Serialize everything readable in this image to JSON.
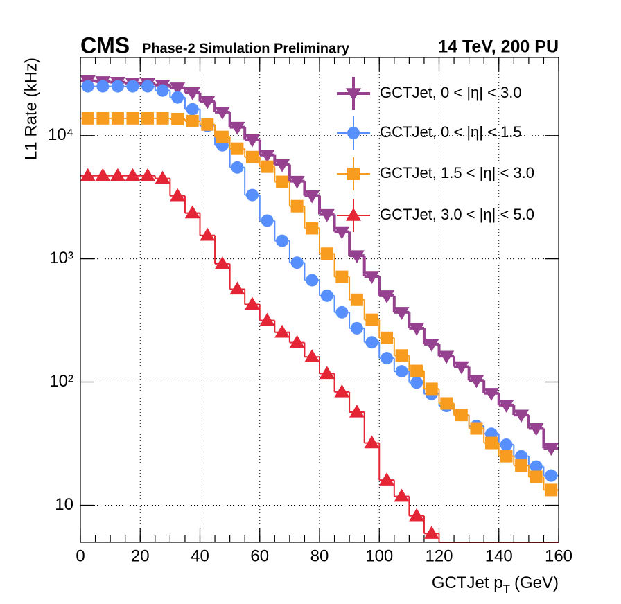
{
  "chart_data": {
    "type": "histogram",
    "experiment": "CMS",
    "subtitle": "Phase-2 Simulation Preliminary",
    "energy_label": "14 TeV, 200 PU",
    "y_label": "L1 Rate (kHz)",
    "x_label": "GCTJet p",
    "x_label_sub": "T",
    "x_label_unit": "(GeV)",
    "log_y": true,
    "grid": true,
    "legend": "upper right",
    "bins": [
      0,
      5,
      10,
      15,
      20,
      25,
      30,
      35,
      40,
      45,
      50,
      55,
      60,
      65,
      70,
      75,
      80,
      85,
      90,
      95,
      100,
      105,
      110,
      115,
      120,
      125,
      130,
      135,
      140,
      145,
      150,
      155,
      160
    ],
    "xlim": [
      0,
      160
    ],
    "xticks": [
      0,
      20,
      40,
      60,
      80,
      100,
      120,
      140,
      160
    ],
    "ylim": [
      5,
      43000
    ],
    "yticks": [
      10,
      {
        "value": 100,
        "label": "10²"
      },
      {
        "value": 1000,
        "label": "10³"
      },
      {
        "value": 10000,
        "label": "10⁴"
      }
    ],
    "series": [
      {
        "name": "GCTJet, 0 < |η| < 3.0",
        "color": "#95418f",
        "marker": "triangle-down",
        "values": [
          27800,
          27400,
          27100,
          26700,
          26400,
          25700,
          24400,
          22300,
          18900,
          15500,
          11700,
          9250,
          6960,
          5810,
          4260,
          3250,
          2290,
          1660,
          1060,
          720,
          502,
          368,
          273,
          203,
          162,
          133,
          103,
          81,
          65,
          54,
          42,
          29
        ]
      },
      {
        "name": "GCTJet, 0 < |η| < 1.5",
        "color": "#5790fc",
        "marker": "circle",
        "values": [
          25100,
          25100,
          25100,
          25100,
          25100,
          23200,
          20400,
          16350,
          12000,
          8340,
          5510,
          3290,
          2040,
          1400,
          930,
          670,
          502,
          368,
          273,
          210,
          156,
          122,
          99,
          80,
          64,
          54,
          44,
          38,
          31,
          25,
          20.6,
          17.4
        ]
      },
      {
        "name": "GCTJet, 1.5 < |η| < 3.0",
        "color": "#f89c20",
        "marker": "square",
        "values": [
          13800,
          13800,
          13800,
          13800,
          13800,
          13800,
          13600,
          13100,
          12300,
          9750,
          7820,
          6690,
          5590,
          4210,
          2670,
          1770,
          1100,
          714,
          465,
          320,
          228,
          164,
          123,
          88,
          67,
          54,
          42,
          32,
          25,
          21,
          17,
          13.3
        ]
      },
      {
        "name": "GCTJet, 3.0 < |η| < 5.0",
        "color": "#e42536",
        "marker": "triangle-up",
        "values": [
          4720,
          4720,
          4720,
          4720,
          4720,
          4490,
          3240,
          2350,
          1550,
          911,
          567,
          426,
          316,
          253,
          209,
          160,
          117,
          83,
          57,
          32,
          16,
          11.8,
          8.2,
          5.9,
          0,
          0,
          0,
          0,
          0,
          0,
          0,
          0
        ]
      }
    ]
  }
}
